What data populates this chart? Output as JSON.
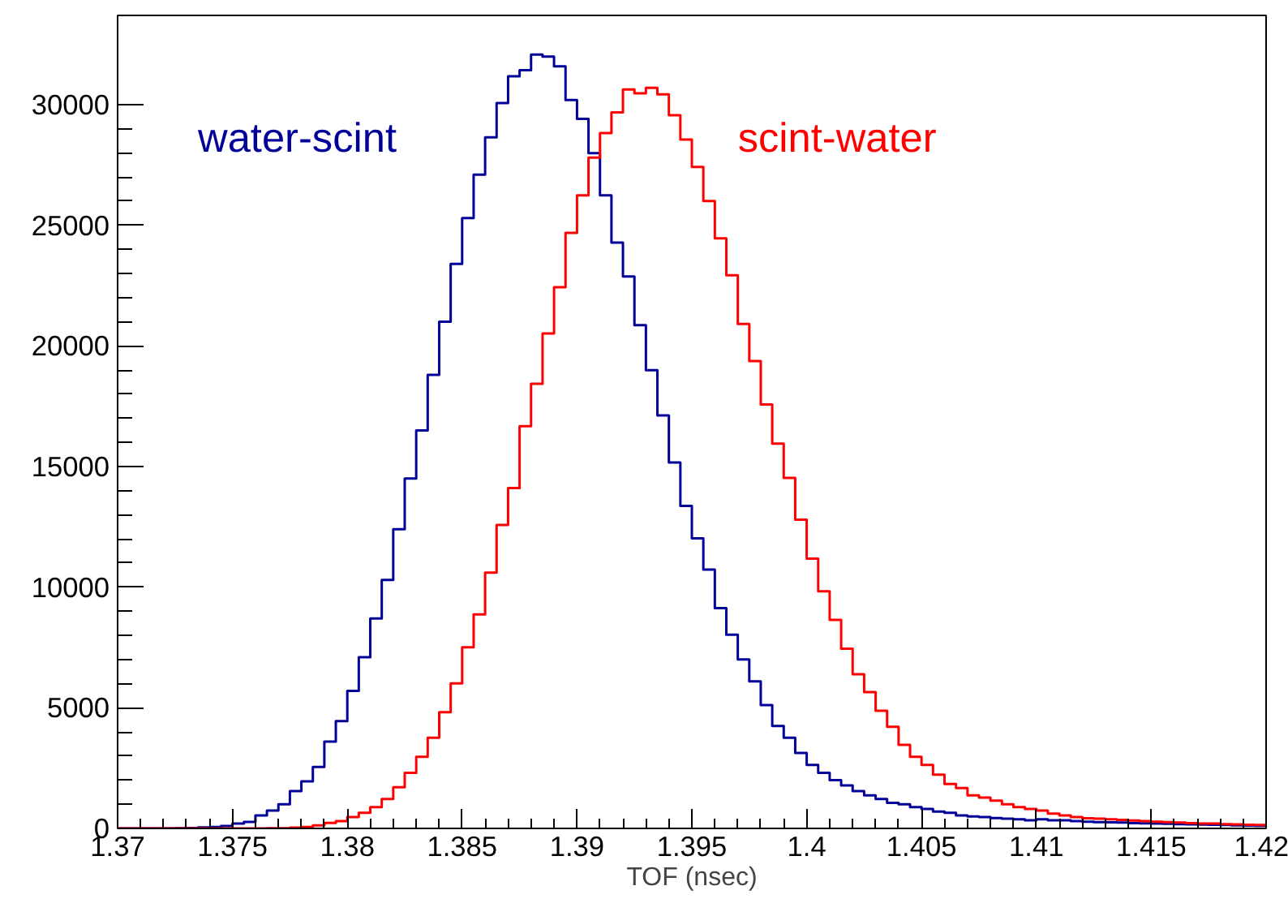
{
  "chart_data": {
    "type": "histogram",
    "xlabel": "TOF (nsec)",
    "bins": [
      1.37,
      1.3705,
      1.371,
      1.3715,
      1.372,
      1.3725,
      1.373,
      1.3735,
      1.374,
      1.3745,
      1.375,
      1.3755,
      1.376,
      1.3765,
      1.377,
      1.3775,
      1.378,
      1.3785,
      1.379,
      1.3795,
      1.38,
      1.3805,
      1.381,
      1.3815,
      1.382,
      1.3825,
      1.383,
      1.3835,
      1.384,
      1.3845,
      1.385,
      1.3855,
      1.386,
      1.3865,
      1.387,
      1.3875,
      1.388,
      1.3885,
      1.389,
      1.3895,
      1.39,
      1.3905,
      1.391,
      1.3915,
      1.392,
      1.3925,
      1.393,
      1.3935,
      1.394,
      1.3945,
      1.395,
      1.3955,
      1.396,
      1.3965,
      1.397,
      1.3975,
      1.398,
      1.3985,
      1.399,
      1.3995,
      1.4,
      1.4005,
      1.401,
      1.4015,
      1.402,
      1.4025,
      1.403,
      1.4035,
      1.404,
      1.4045,
      1.405,
      1.4055,
      1.406,
      1.4065,
      1.407,
      1.4075,
      1.408,
      1.4085,
      1.409,
      1.4095,
      1.41,
      1.4105,
      1.411,
      1.4115,
      1.412,
      1.4125,
      1.413,
      1.4135,
      1.414,
      1.4145,
      1.415,
      1.4155,
      1.416,
      1.4165,
      1.417,
      1.4175,
      1.418,
      1.4185,
      1.419,
      1.4195,
      1.42
    ],
    "series": [
      {
        "name": "water-scint",
        "color": "#000099",
        "values": [
          0,
          0,
          0,
          0,
          0,
          10,
          20,
          40,
          60,
          100,
          200,
          270,
          540,
          740,
          1000,
          1550,
          1950,
          2550,
          3600,
          4450,
          5700,
          7100,
          8700,
          10300,
          12400,
          14500,
          16500,
          18800,
          21000,
          23400,
          25300,
          27100,
          28650,
          30070,
          31180,
          31430,
          32080,
          31990,
          31590,
          30190,
          29410,
          27990,
          26240,
          24280,
          22880,
          20860,
          18990,
          17120,
          15170,
          13370,
          12020,
          10730,
          9130,
          8030,
          7000,
          6100,
          5110,
          4250,
          3760,
          3130,
          2630,
          2300,
          2000,
          1780,
          1550,
          1370,
          1220,
          1060,
          1000,
          880,
          810,
          700,
          650,
          540,
          500,
          470,
          430,
          400,
          380,
          340,
          380,
          340,
          340,
          300,
          280,
          260,
          250,
          240,
          220,
          210,
          200,
          190,
          180,
          170,
          160,
          150,
          140,
          130,
          120,
          110
        ]
      },
      {
        "name": "scint-water",
        "color": "#ff0000",
        "values": [
          0,
          0,
          0,
          0,
          0,
          0,
          0,
          0,
          0,
          0,
          0,
          0,
          0,
          10,
          10,
          30,
          60,
          130,
          230,
          300,
          470,
          650,
          880,
          1220,
          1710,
          2300,
          2970,
          3760,
          4820,
          6010,
          7510,
          8870,
          10600,
          12580,
          14110,
          16670,
          18430,
          20520,
          22430,
          24690,
          26240,
          27810,
          28820,
          29680,
          30630,
          30470,
          30700,
          30430,
          29560,
          28550,
          27420,
          26010,
          24460,
          22930,
          20910,
          19370,
          17570,
          15950,
          14530,
          12800,
          11180,
          9830,
          8640,
          7450,
          6390,
          5650,
          4880,
          4210,
          3460,
          2970,
          2630,
          2230,
          1840,
          1670,
          1370,
          1280,
          1150,
          1000,
          880,
          810,
          740,
          610,
          540,
          470,
          420,
          400,
          380,
          350,
          330,
          300,
          280,
          260,
          240,
          220,
          200,
          200,
          180,
          170,
          150,
          140
        ]
      }
    ],
    "xlim": [
      1.37,
      1.42
    ],
    "ylim": [
      0,
      33700
    ],
    "xticks": [
      1.37,
      1.375,
      1.38,
      1.385,
      1.39,
      1.395,
      1.4,
      1.405,
      1.41,
      1.415,
      1.42
    ],
    "yticks": [
      0,
      5000,
      10000,
      15000,
      20000,
      25000,
      30000
    ],
    "grid": false,
    "legend": false
  }
}
